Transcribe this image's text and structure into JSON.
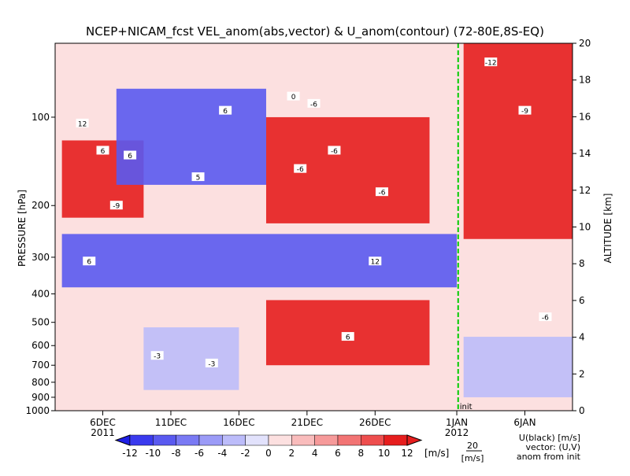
{
  "chart_data": {
    "type": "heatmap",
    "title": "NCEP+NICAM_fcst VEL_anom(abs,vector) & U_anom(contour)   (72-80E,8S-EQ)",
    "ylabel": "PRESSURE [hPa]",
    "y2label": "ALTITUDE [km]",
    "x_ticks": [
      {
        "day": 6,
        "label": "6DEC"
      },
      {
        "day": 11,
        "label": "11DEC"
      },
      {
        "day": 16,
        "label": "16DEC"
      },
      {
        "day": 21,
        "label": "21DEC"
      },
      {
        "day": 26,
        "label": "26DEC"
      },
      {
        "day": 32,
        "label": "1JAN"
      },
      {
        "day": 37,
        "label": "6JAN"
      }
    ],
    "x_range_days": [
      2.5,
      40.5
    ],
    "x_year_labels": [
      {
        "day": 6,
        "label": "2011"
      },
      {
        "day": 32,
        "label": "2012"
      }
    ],
    "init_day": 32.1,
    "init_label": "init",
    "y_ticks_pressure": [
      1000,
      900,
      800,
      700,
      600,
      500,
      400,
      300,
      200,
      100
    ],
    "y_labels_pressure": [
      "1000",
      "900",
      "800",
      "700",
      "600",
      "500",
      "400",
      "300",
      "200",
      "100"
    ],
    "y_range_pressure": [
      1000,
      56
    ],
    "y_ticks_altitude": [
      0,
      2,
      4,
      6,
      8,
      10,
      12,
      14,
      16,
      18,
      20
    ],
    "y_range_altitude": [
      0,
      20
    ],
    "colorbar": {
      "levels": [
        -12,
        -10,
        -8,
        -6,
        -4,
        -2,
        0,
        2,
        4,
        6,
        8,
        10,
        12
      ],
      "labels": [
        "-12",
        "-10",
        "-8",
        "-6",
        "-4",
        "-2",
        "0",
        "2",
        "4",
        "6",
        "8",
        "10",
        "12"
      ],
      "unit": "[m/s]",
      "colors": [
        "#1f1fe6",
        "#3a3aee",
        "#5a5af0",
        "#7a7af4",
        "#9b9bf7",
        "#bcbcfa",
        "#e2e2fc",
        "#fce0e0",
        "#f9bcbc",
        "#f69a9a",
        "#f27474",
        "#ee4e4e",
        "#e61e1e",
        "#e61e1e"
      ]
    },
    "bands": [
      {
        "day_from": 3,
        "day_to": 9,
        "p_top": 120,
        "p_bot": 220,
        "value": 12
      },
      {
        "day_from": 7,
        "day_to": 18,
        "p_top": 80,
        "p_bot": 170,
        "value": -10
      },
      {
        "day_from": 18,
        "day_to": 30,
        "p_top": 100,
        "p_bot": 230,
        "value": 10
      },
      {
        "day_from": 3,
        "day_to": 32,
        "p_top": 250,
        "p_bot": 380,
        "value": -10
      },
      {
        "day_from": 18,
        "day_to": 30,
        "p_top": 420,
        "p_bot": 700,
        "value": 10
      },
      {
        "day_from": 9,
        "day_to": 16,
        "p_top": 520,
        "p_bot": 850,
        "value": -4
      },
      {
        "day_from": 32.5,
        "day_to": 40.5,
        "p_top": 56,
        "p_bot": 260,
        "value": 10
      },
      {
        "day_from": 32.5,
        "day_to": 40.5,
        "p_top": 560,
        "p_bot": 900,
        "value": -4
      }
    ],
    "contour_labels": [
      {
        "day": 4.5,
        "p": 105,
        "text": "12"
      },
      {
        "day": 6,
        "p": 130,
        "text": "6"
      },
      {
        "day": 8,
        "p": 135,
        "text": "6"
      },
      {
        "day": 15,
        "p": 95,
        "text": "6"
      },
      {
        "day": 13,
        "p": 160,
        "text": "5"
      },
      {
        "day": 20,
        "p": 85,
        "text": "0"
      },
      {
        "day": 21.5,
        "p": 90,
        "text": "-6"
      },
      {
        "day": 20.5,
        "p": 150,
        "text": "-6"
      },
      {
        "day": 23,
        "p": 130,
        "text": "-6"
      },
      {
        "day": 26.5,
        "p": 180,
        "text": "-6"
      },
      {
        "day": 34.5,
        "p": 65,
        "text": "-12"
      },
      {
        "day": 37,
        "p": 95,
        "text": "-9"
      },
      {
        "day": 7,
        "p": 200,
        "text": "-9"
      },
      {
        "day": 26,
        "p": 310,
        "text": "12"
      },
      {
        "day": 5,
        "p": 310,
        "text": "6"
      },
      {
        "day": 24,
        "p": 560,
        "text": "6"
      },
      {
        "day": 10,
        "p": 650,
        "text": "-3"
      },
      {
        "day": 14,
        "p": 690,
        "text": "-3"
      },
      {
        "day": 38.5,
        "p": 480,
        "text": "-6"
      }
    ],
    "legend_note": [
      "U(black) [m/s]",
      "vector: (U,V)",
      "anom from init"
    ],
    "vector_scale_value": "20",
    "vector_scale_unit": "[m/s]"
  }
}
